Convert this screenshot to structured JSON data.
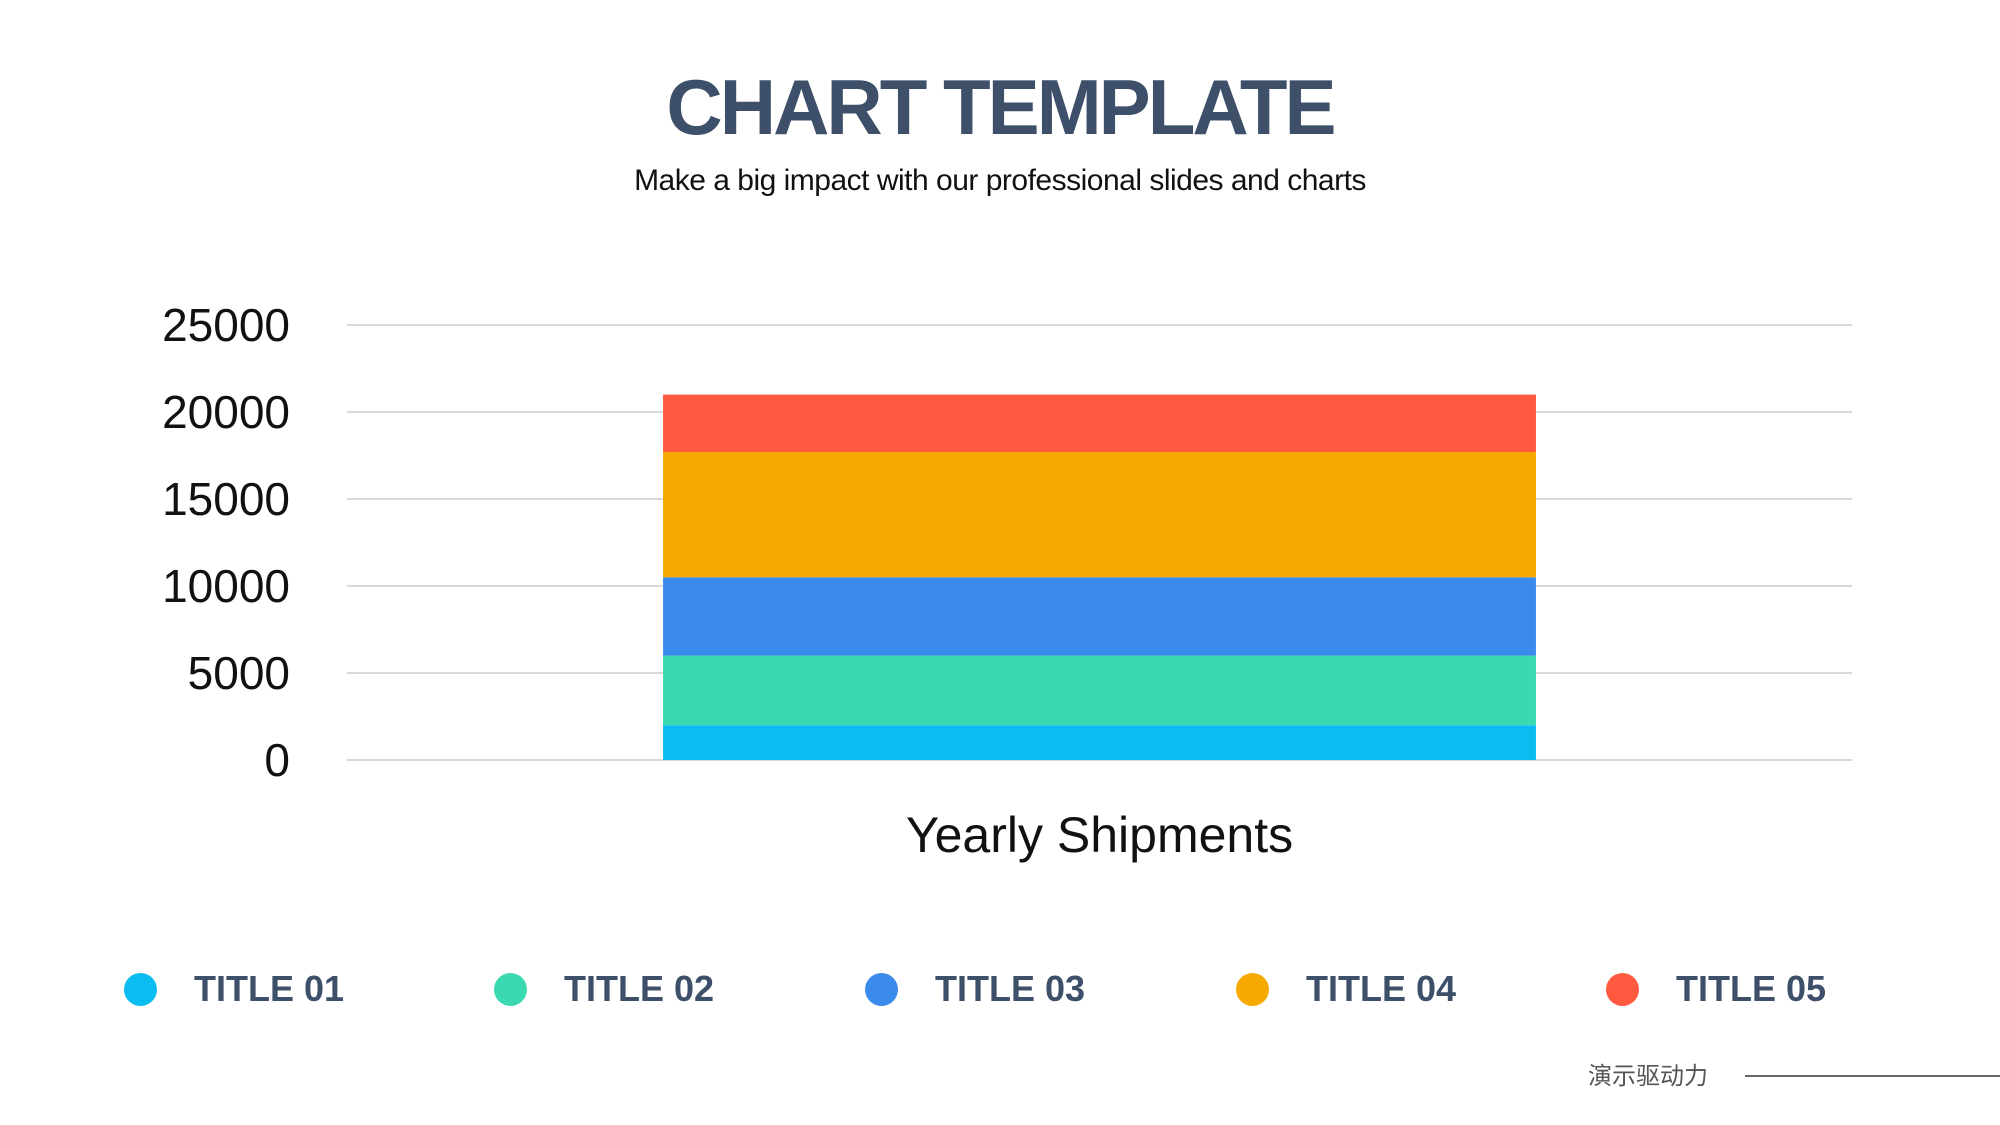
{
  "header": {
    "title": "CHART TEMPLATE",
    "subtitle": "Make a big impact with our professional slides and charts"
  },
  "chart_data": {
    "type": "bar",
    "stacked": true,
    "categories": [
      "Yearly Shipments"
    ],
    "series": [
      {
        "name": "TITLE 01",
        "values": [
          2000
        ],
        "color": "#0abcf0"
      },
      {
        "name": "TITLE 02",
        "values": [
          4000
        ],
        "color": "#3ad9b1"
      },
      {
        "name": "TITLE 03",
        "values": [
          4500
        ],
        "color": "#3b8bec"
      },
      {
        "name": "TITLE 04",
        "values": [
          7200
        ],
        "color": "#f6aa00"
      },
      {
        "name": "TITLE 05",
        "values": [
          3300
        ],
        "color": "#ff5a40"
      }
    ],
    "ylim": [
      0,
      25000
    ],
    "yticks": [
      "0",
      "5000",
      "10000",
      "15000",
      "20000",
      "25000"
    ],
    "grid": true,
    "legend": "bottom"
  },
  "footer": {
    "text": "演示驱动力"
  }
}
